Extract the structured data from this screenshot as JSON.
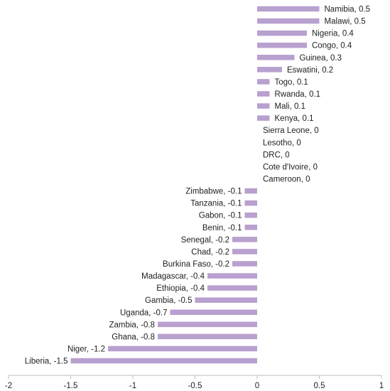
{
  "chart_data": {
    "type": "bar",
    "orientation": "horizontal",
    "title": "",
    "xlabel": "",
    "ylabel": "",
    "xlim": [
      -2,
      1
    ],
    "xticks": [
      -2,
      -1.5,
      -1,
      -0.5,
      0,
      0.5,
      1
    ],
    "xtick_labels": [
      "-2",
      "-1.5",
      "-1",
      "-0.5",
      "0",
      "0.5",
      "1"
    ],
    "grid": false,
    "legend": "none",
    "bar_color": "#b8a0cf",
    "categories": [
      "Namibia",
      "Malawi",
      "Nigeria",
      "Congo",
      "Guinea",
      "Eswatini",
      "Togo",
      "Rwanda",
      "Mali",
      "Kenya",
      "Sierra Leone",
      "Lesotho",
      "DRC",
      "Cote d'Ivoire",
      "Cameroon",
      "Zimbabwe",
      "Tanzania",
      "Gabon",
      "Benin",
      "Senegal",
      "Chad",
      "Burkina Faso",
      "Madagascar",
      "Ethiopia",
      "Gambia",
      "Uganda",
      "Zambia",
      "Ghana",
      "Niger",
      "Liberia"
    ],
    "values": [
      0.5,
      0.5,
      0.4,
      0.4,
      0.3,
      0.2,
      0.1,
      0.1,
      0.1,
      0.1,
      0,
      0,
      0,
      0,
      0,
      -0.1,
      -0.1,
      -0.1,
      -0.1,
      -0.2,
      -0.2,
      -0.2,
      -0.4,
      -0.4,
      -0.5,
      -0.7,
      -0.8,
      -0.8,
      -1.2,
      -1.5
    ],
    "data_labels": [
      "Namibia, 0.5",
      "Malawi, 0.5",
      "Nigeria, 0.4",
      "Congo, 0.4",
      "Guinea, 0.3",
      "Eswatini, 0.2",
      "Togo, 0.1",
      "Rwanda, 0.1",
      "Mali, 0.1",
      "Kenya, 0.1",
      "Sierra Leone, 0",
      "Lesotho, 0",
      "DRC, 0",
      "Cote d'Ivoire, 0",
      "Cameroon, 0",
      "Zimbabwe, -0.1",
      "Tanzania, -0.1",
      "Gabon, -0.1",
      "Benin, -0.1",
      "Senegal, -0.2",
      "Chad, -0.2",
      "Burkina Faso, -0.2",
      "Madagascar, -0.4",
      "Ethiopia, -0.4",
      "Gambia, -0.5",
      "Uganda, -0.7",
      "Zambia, -0.8",
      "Ghana, -0.8",
      "Niger, -1.2",
      "Liberia, -1.5"
    ]
  }
}
